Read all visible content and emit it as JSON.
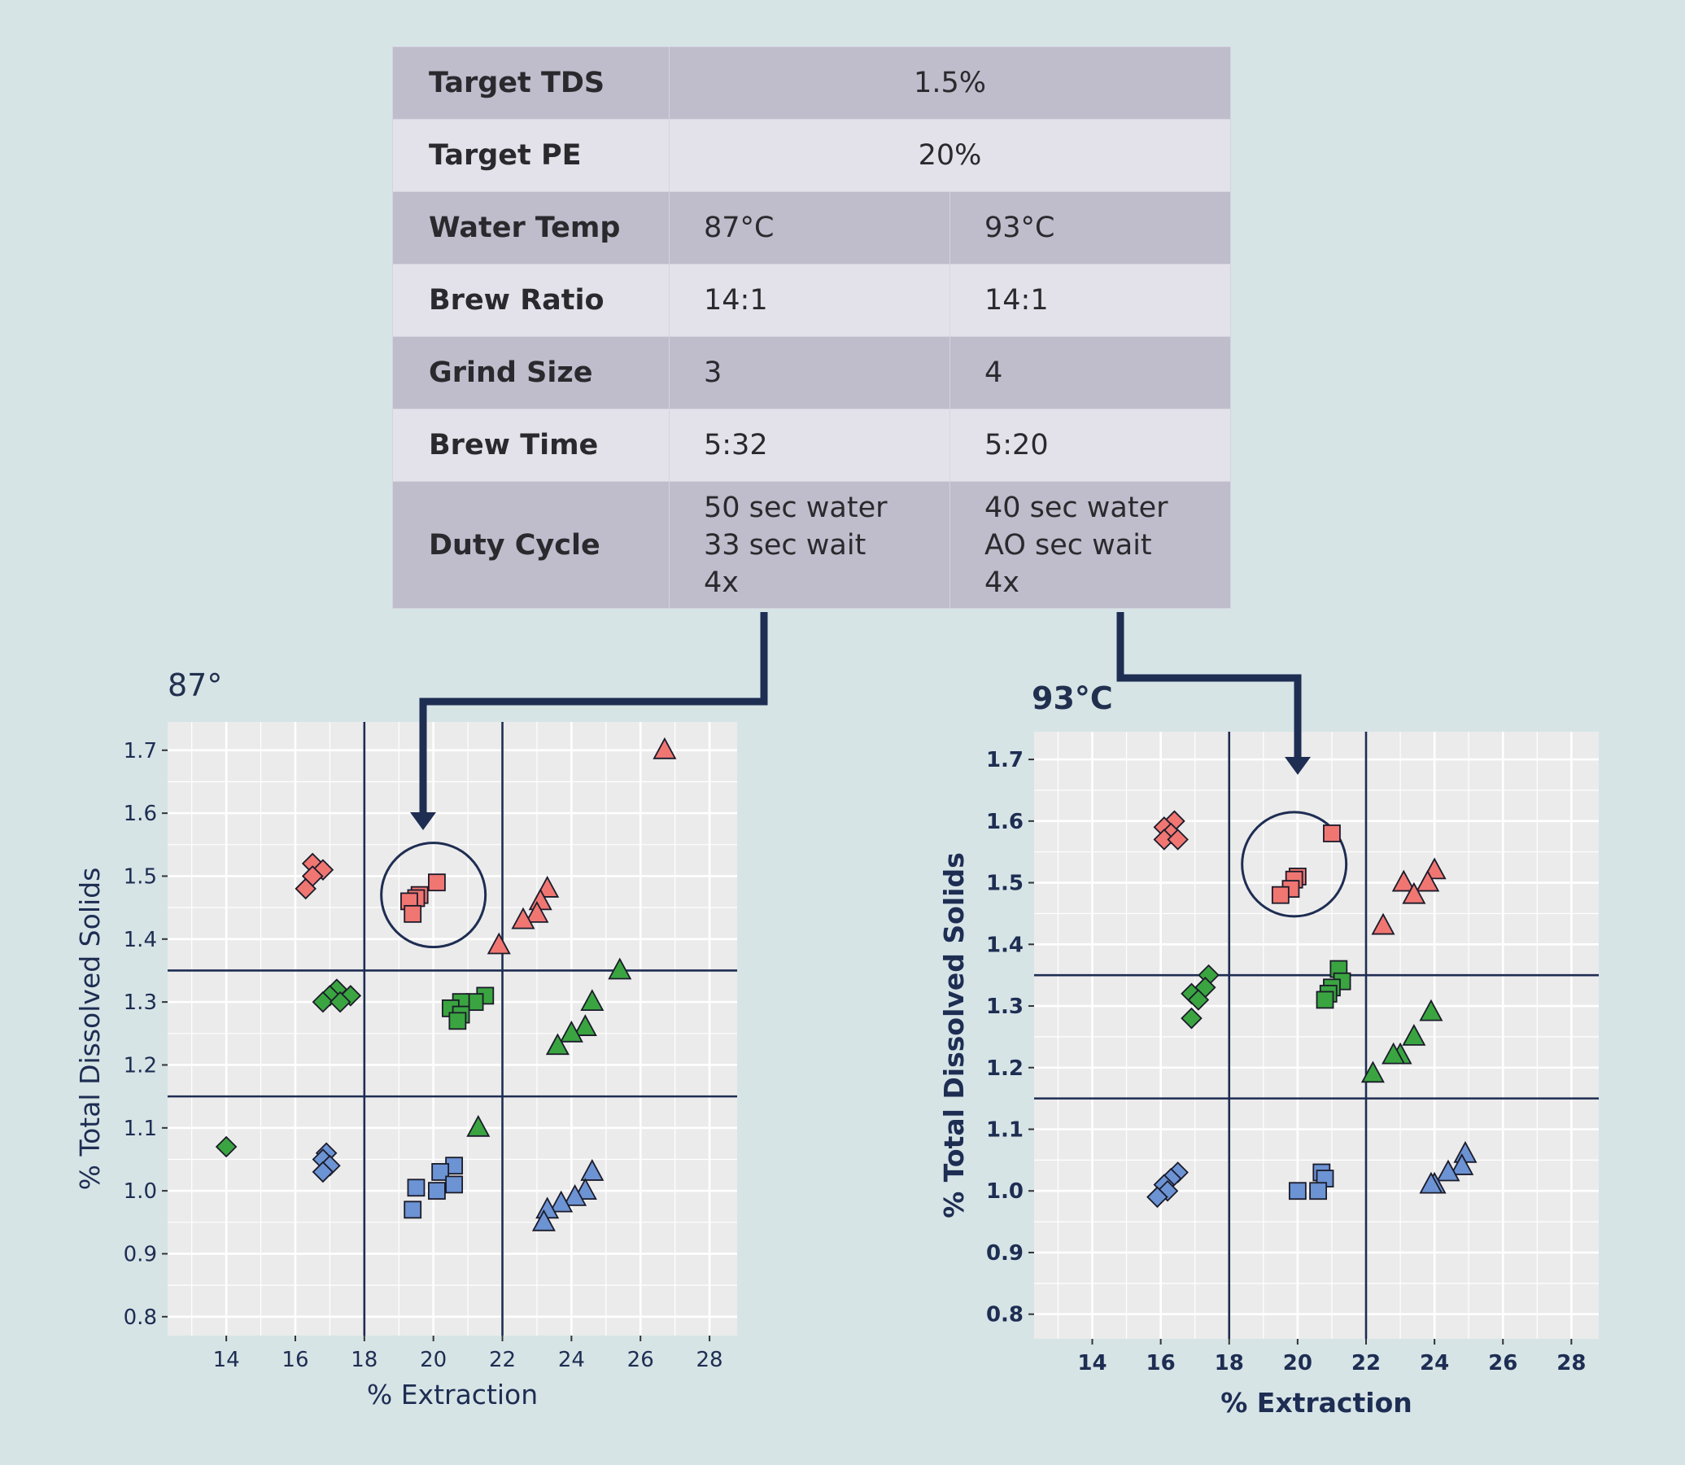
{
  "table": {
    "rows": [
      {
        "label": "Target TDS",
        "span": "1.5%",
        "style": "dark"
      },
      {
        "label": "Target PE",
        "span": "20%",
        "style": "light"
      },
      {
        "label": "Water Temp",
        "a": [
          "87°C"
        ],
        "b": [
          "93°C"
        ],
        "style": "dark"
      },
      {
        "label": "Brew Ratio",
        "a": [
          "14:1"
        ],
        "b": [
          "14:1"
        ],
        "style": "light"
      },
      {
        "label": "Grind Size",
        "a": [
          "3"
        ],
        "b": [
          "4"
        ],
        "style": "dark"
      },
      {
        "label": "Brew Time",
        "a": [
          "5:32"
        ],
        "b": [
          "5:20"
        ],
        "style": "light"
      },
      {
        "label": "Duty Cycle",
        "a": [
          "50 sec water",
          "33 sec wait",
          "4x"
        ],
        "b": [
          "40 sec water",
          "AO sec wait",
          "4x"
        ],
        "style": "dark"
      }
    ]
  },
  "colors": {
    "red": "#f07672",
    "green": "#3aa540",
    "blue": "#6c93d3",
    "line": "#1e2d52",
    "panel": "#ebebeb",
    "grid": "#ffffff"
  },
  "chart_data": [
    {
      "type": "scatter",
      "title": "87°",
      "xlabel": "% Extraction",
      "ylabel": "% Total Dissolved Solids",
      "xlim": [
        12.3,
        28.8
      ],
      "ylim": [
        0.77,
        1.745
      ],
      "xticks": [
        14,
        16,
        18,
        20,
        22,
        24,
        26,
        28
      ],
      "yticks": [
        0.8,
        0.9,
        1.0,
        1.1,
        1.2,
        1.3,
        1.4,
        1.5,
        1.6,
        1.7
      ],
      "ytick_labels": [
        "0.8",
        "0.9",
        "1.0",
        "1.1",
        "1.2",
        "1.3",
        "1.4",
        "1.5",
        "1.6",
        "1.7"
      ],
      "grid": true,
      "reference_lines": {
        "x": [
          18,
          22
        ],
        "y": [
          1.15,
          1.35
        ]
      },
      "target_circle": {
        "x": 20,
        "y": 1.47
      },
      "series": [
        {
          "color": "red",
          "marker": "diamond",
          "points": [
            [
              16.5,
              1.52
            ],
            [
              16.8,
              1.51
            ],
            [
              16.5,
              1.5
            ],
            [
              16.3,
              1.48
            ]
          ]
        },
        {
          "color": "red",
          "marker": "square",
          "points": [
            [
              20.1,
              1.49
            ],
            [
              19.6,
              1.47
            ],
            [
              19.5,
              1.465
            ],
            [
              19.3,
              1.46
            ],
            [
              19.4,
              1.44
            ]
          ]
        },
        {
          "color": "red",
          "marker": "triangle",
          "points": [
            [
              26.7,
              1.7
            ],
            [
              23.3,
              1.48
            ],
            [
              23.1,
              1.46
            ],
            [
              23.0,
              1.44
            ],
            [
              22.6,
              1.43
            ],
            [
              21.9,
              1.39
            ]
          ]
        },
        {
          "color": "green",
          "marker": "diamond",
          "points": [
            [
              17.2,
              1.32
            ],
            [
              17.0,
              1.31
            ],
            [
              17.6,
              1.31
            ],
            [
              16.8,
              1.3
            ],
            [
              17.3,
              1.3
            ],
            [
              14.0,
              1.07
            ]
          ]
        },
        {
          "color": "green",
          "marker": "square",
          "points": [
            [
              21.5,
              1.31
            ],
            [
              21.2,
              1.3
            ],
            [
              20.8,
              1.3
            ],
            [
              20.5,
              1.29
            ],
            [
              20.8,
              1.28
            ],
            [
              20.7,
              1.27
            ]
          ]
        },
        {
          "color": "green",
          "marker": "triangle",
          "points": [
            [
              25.4,
              1.35
            ],
            [
              24.6,
              1.3
            ],
            [
              24.4,
              1.26
            ],
            [
              24.0,
              1.25
            ],
            [
              23.6,
              1.23
            ],
            [
              21.3,
              1.1
            ]
          ]
        },
        {
          "color": "blue",
          "marker": "diamond",
          "points": [
            [
              16.9,
              1.06
            ],
            [
              16.8,
              1.05
            ],
            [
              17.0,
              1.04
            ],
            [
              16.8,
              1.03
            ]
          ]
        },
        {
          "color": "blue",
          "marker": "square",
          "points": [
            [
              20.6,
              1.04
            ],
            [
              20.2,
              1.03
            ],
            [
              20.6,
              1.01
            ],
            [
              19.5,
              1.005
            ],
            [
              20.1,
              1.0
            ],
            [
              19.4,
              0.97
            ]
          ]
        },
        {
          "color": "blue",
          "marker": "triangle",
          "points": [
            [
              24.6,
              1.03
            ],
            [
              24.4,
              1.0
            ],
            [
              24.1,
              0.99
            ],
            [
              23.7,
              0.98
            ],
            [
              23.3,
              0.97
            ],
            [
              23.2,
              0.95
            ]
          ]
        }
      ]
    },
    {
      "type": "scatter",
      "title": "93°C",
      "xlabel": "% Extraction",
      "ylabel": "% Total Dissolved Solids",
      "xlim": [
        12.3,
        28.8
      ],
      "ylim": [
        0.76,
        1.745
      ],
      "xticks": [
        14,
        16,
        18,
        20,
        22,
        24,
        26,
        28
      ],
      "yticks": [
        0.8,
        0.9,
        1.0,
        1.1,
        1.2,
        1.3,
        1.4,
        1.5,
        1.6,
        1.7
      ],
      "ytick_labels": [
        "0.8",
        "0.9",
        "1.0",
        "1.1",
        "1.2",
        "1.3",
        "1.4",
        "1.5",
        "1.6",
        "1.7"
      ],
      "grid": true,
      "reference_lines": {
        "x": [
          18,
          22
        ],
        "y": [
          1.15,
          1.35
        ]
      },
      "target_circle": {
        "x": 19.9,
        "y": 1.53
      },
      "series": [
        {
          "color": "red",
          "marker": "diamond",
          "points": [
            [
              16.4,
              1.6
            ],
            [
              16.1,
              1.59
            ],
            [
              16.3,
              1.58
            ],
            [
              16.1,
              1.57
            ],
            [
              16.5,
              1.57
            ]
          ]
        },
        {
          "color": "red",
          "marker": "square",
          "points": [
            [
              21.0,
              1.58
            ],
            [
              20.0,
              1.51
            ],
            [
              19.9,
              1.505
            ],
            [
              19.8,
              1.49
            ],
            [
              19.5,
              1.48
            ]
          ]
        },
        {
          "color": "red",
          "marker": "triangle",
          "points": [
            [
              24.0,
              1.52
            ],
            [
              23.8,
              1.5
            ],
            [
              23.1,
              1.5
            ],
            [
              23.4,
              1.48
            ],
            [
              22.5,
              1.43
            ]
          ]
        },
        {
          "color": "green",
          "marker": "diamond",
          "points": [
            [
              17.4,
              1.35
            ],
            [
              17.3,
              1.33
            ],
            [
              16.9,
              1.32
            ],
            [
              17.1,
              1.31
            ],
            [
              16.9,
              1.28
            ]
          ]
        },
        {
          "color": "green",
          "marker": "square",
          "points": [
            [
              21.2,
              1.36
            ],
            [
              21.3,
              1.34
            ],
            [
              21.0,
              1.33
            ],
            [
              20.9,
              1.32
            ],
            [
              20.8,
              1.31
            ]
          ]
        },
        {
          "color": "green",
          "marker": "triangle",
          "points": [
            [
              23.9,
              1.29
            ],
            [
              23.4,
              1.25
            ],
            [
              23.0,
              1.22
            ],
            [
              22.8,
              1.22
            ],
            [
              22.2,
              1.19
            ]
          ]
        },
        {
          "color": "blue",
          "marker": "diamond",
          "points": [
            [
              16.5,
              1.03
            ],
            [
              16.3,
              1.02
            ],
            [
              16.1,
              1.01
            ],
            [
              16.2,
              1.0
            ],
            [
              15.9,
              0.99
            ]
          ]
        },
        {
          "color": "blue",
          "marker": "square",
          "points": [
            [
              20.7,
              1.03
            ],
            [
              20.8,
              1.02
            ],
            [
              20.0,
              1.0
            ],
            [
              20.6,
              1.0
            ]
          ]
        },
        {
          "color": "blue",
          "marker": "triangle",
          "points": [
            [
              24.9,
              1.06
            ],
            [
              24.8,
              1.04
            ],
            [
              24.4,
              1.03
            ],
            [
              24.0,
              1.01
            ],
            [
              23.9,
              1.01
            ]
          ]
        }
      ]
    }
  ]
}
